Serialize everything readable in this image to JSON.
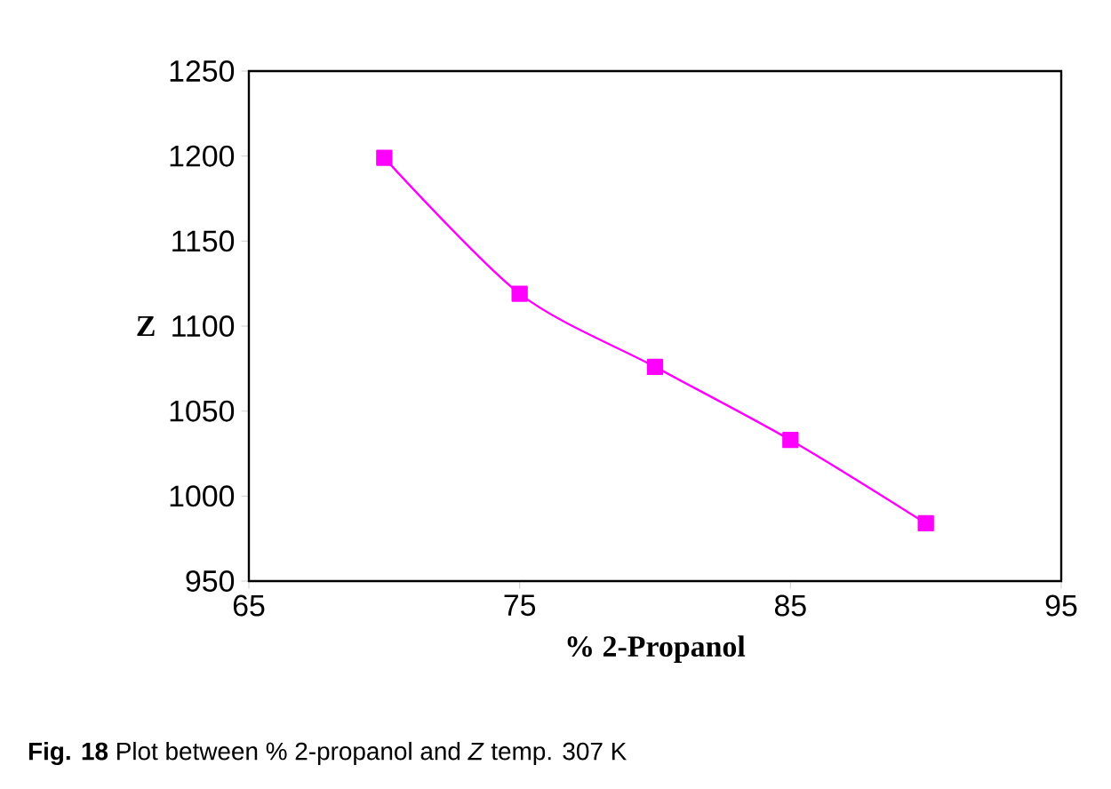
{
  "chart_data": {
    "type": "line",
    "xlabel": "% 2-Propanol",
    "ylabel": "Z",
    "x": [
      70,
      75,
      80,
      85,
      90
    ],
    "series": [
      {
        "color": "#ff00ff",
        "values": [
          1199,
          1119,
          1076,
          1033,
          984
        ]
      }
    ],
    "xlim": [
      65,
      95
    ],
    "xticks": [
      65,
      75,
      85,
      95
    ],
    "ylim": [
      950,
      1250
    ],
    "yticks": [
      950,
      1000,
      1050,
      1100,
      1150,
      1200,
      1250
    ],
    "marker": "square",
    "line_style": "solid",
    "annotations": [
      "**Fig. 18** Plot between % 2-propanol and *Z* temp. 307 K"
    ]
  }
}
